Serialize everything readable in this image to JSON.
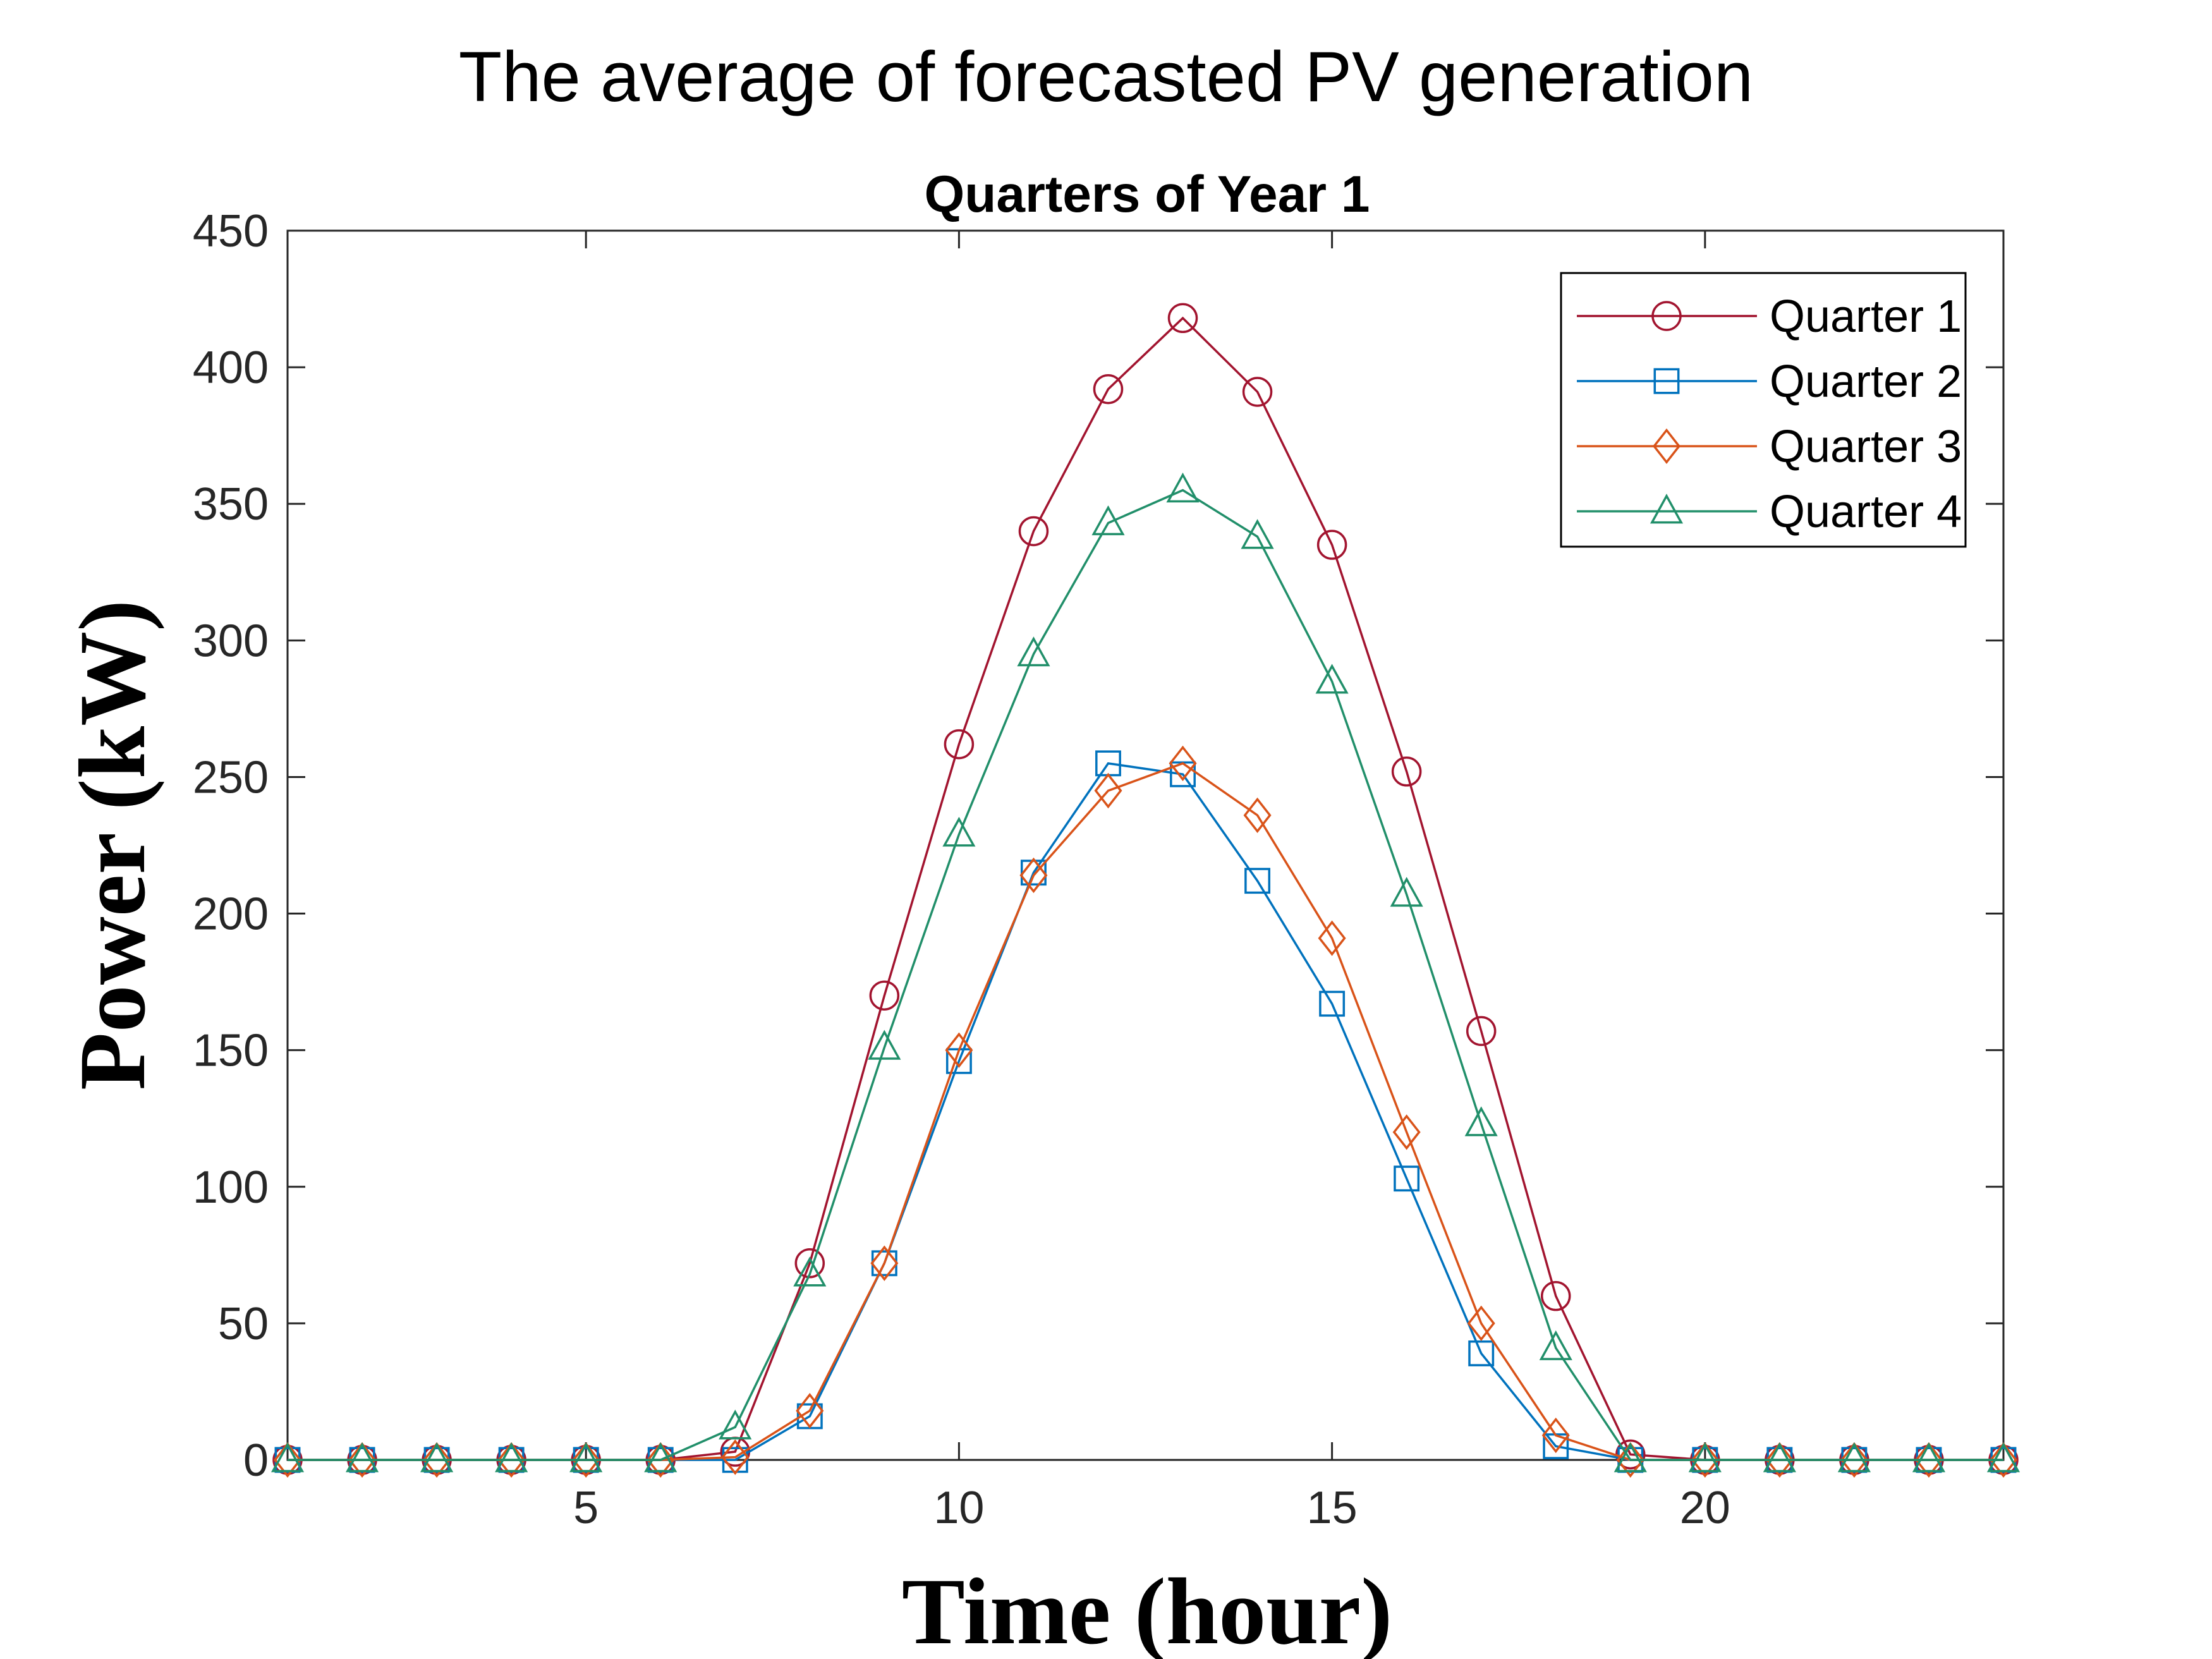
{
  "chart_data": {
    "type": "line",
    "suptitle": "The average of forecasted PV generation",
    "title": "Quarters of Year 1",
    "xlabel": "Time (hour)",
    "ylabel": "Power (kW)",
    "xlim": [
      1,
      24
    ],
    "ylim": [
      0,
      450
    ],
    "xticks": [
      5,
      10,
      15,
      20
    ],
    "yticks": [
      0,
      50,
      100,
      150,
      200,
      250,
      300,
      350,
      400,
      450
    ],
    "grid": false,
    "legend_position": "top-right",
    "x": [
      1,
      2,
      3,
      4,
      5,
      6,
      7,
      8,
      9,
      10,
      11,
      12,
      13,
      14,
      15,
      16,
      17,
      18,
      19,
      20,
      21,
      22,
      23,
      24
    ],
    "series": [
      {
        "name": "Quarter 1",
        "color": "#A2142F",
        "marker": "circle",
        "values": [
          0,
          0,
          0,
          0,
          0,
          0,
          3,
          72,
          170,
          262,
          340,
          392,
          418,
          391,
          335,
          252,
          157,
          60,
          2,
          0,
          0,
          0,
          0,
          0
        ]
      },
      {
        "name": "Quarter 2",
        "color": "#0072BD",
        "marker": "square",
        "values": [
          0,
          0,
          0,
          0,
          0,
          0,
          0,
          16,
          72,
          146,
          215,
          255,
          251,
          212,
          167,
          103,
          39,
          5,
          0,
          0,
          0,
          0,
          0,
          0
        ]
      },
      {
        "name": "Quarter 3",
        "color": "#D95319",
        "marker": "diamond",
        "values": [
          0,
          0,
          0,
          0,
          0,
          0,
          1,
          18,
          72,
          150,
          214,
          245,
          255,
          236,
          191,
          120,
          50,
          9,
          0,
          0,
          0,
          0,
          0,
          0
        ]
      },
      {
        "name": "Quarter 4",
        "color": "#218F6A",
        "marker": "triangle",
        "values": [
          0,
          0,
          0,
          0,
          0,
          0,
          12,
          68,
          151,
          229,
          295,
          343,
          355,
          338,
          285,
          207,
          123,
          41,
          0,
          0,
          0,
          0,
          0,
          0
        ]
      }
    ]
  }
}
